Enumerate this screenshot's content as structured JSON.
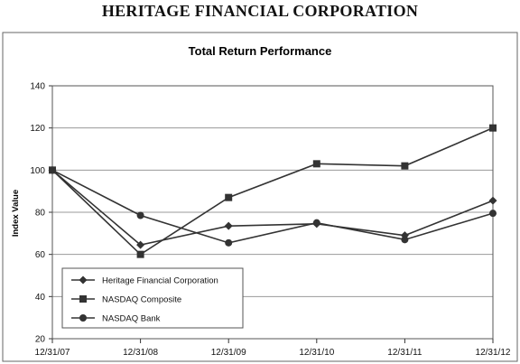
{
  "page": {
    "company": "HERITAGE FINANCIAL CORPORATION"
  },
  "colors": {
    "line": "#333333",
    "grid": "#999999",
    "frame": "#666666"
  },
  "chart_data": {
    "type": "line",
    "title": "Total Return Performance",
    "xlabel": "",
    "ylabel": "Index Value",
    "categories": [
      "12/31/07",
      "12/31/08",
      "12/31/09",
      "12/31/10",
      "12/31/11",
      "12/31/12"
    ],
    "ylim": [
      20,
      140
    ],
    "yticks": [
      20,
      40,
      60,
      80,
      100,
      120,
      140
    ],
    "grid": "horizontal",
    "legend_position": "bottom-left",
    "series": [
      {
        "name": "Heritage Financial Corporation",
        "marker": "diamond",
        "values": [
          100,
          64.5,
          73.5,
          74.5,
          69,
          85.5
        ]
      },
      {
        "name": "NASDAQ Composite",
        "marker": "square",
        "values": [
          100,
          60,
          87,
          103,
          102,
          120
        ]
      },
      {
        "name": "NASDAQ Bank",
        "marker": "circle",
        "values": [
          100,
          78.5,
          65.5,
          75,
          67,
          79.5
        ]
      }
    ]
  }
}
